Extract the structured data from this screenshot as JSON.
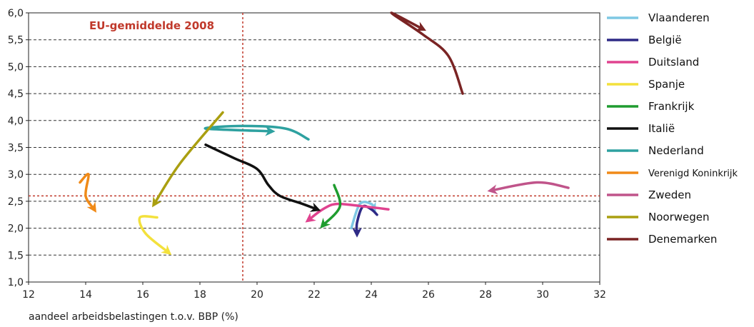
{
  "chart_data": {
    "type": "line",
    "title": "",
    "xlabel": "aandeel arbeidsbelastingen t.o.v. BBP (%)",
    "ylabel": "",
    "xlim": [
      12,
      32
    ],
    "ylim": [
      1.0,
      6.0
    ],
    "x_ticks": [
      "12",
      "14",
      "16",
      "18",
      "20",
      "22",
      "24",
      "26",
      "28",
      "30",
      "32"
    ],
    "y_ticks": [
      "1,0",
      "1,5",
      "2,0",
      "2,5",
      "3,0",
      "3,5",
      "4,0",
      "4,5",
      "5,0",
      "5,5",
      "6,0"
    ],
    "grid": "horizontal-dashed",
    "legend_position": "right",
    "reference": {
      "label": "EU-gemiddelde 2008",
      "x": 19.5,
      "y": 2.6,
      "color": "#c0392b"
    },
    "series": [
      {
        "name": "Vlaanderen",
        "color": "#7ec8e3",
        "points": [
          [
            23.3,
            2.0
          ],
          [
            23.6,
            2.45
          ],
          [
            24.0,
            2.45
          ],
          [
            24.1,
            2.35
          ]
        ]
      },
      {
        "name": "België",
        "color": "#2e2a86",
        "points": [
          [
            24.2,
            2.25
          ],
          [
            24.0,
            2.35
          ],
          [
            23.7,
            2.4
          ],
          [
            23.5,
            2.1
          ],
          [
            23.5,
            1.9
          ]
        ]
      },
      {
        "name": "Duitsland",
        "color": "#e0438f",
        "points": [
          [
            24.6,
            2.35
          ],
          [
            23.8,
            2.4
          ],
          [
            22.8,
            2.45
          ],
          [
            22.3,
            2.35
          ],
          [
            21.8,
            2.15
          ]
        ]
      },
      {
        "name": "Spanje",
        "color": "#f3e13c",
        "points": [
          [
            16.5,
            2.2
          ],
          [
            15.9,
            2.2
          ],
          [
            16.1,
            1.9
          ],
          [
            16.9,
            1.55
          ]
        ]
      },
      {
        "name": "Frankrijk",
        "color": "#1f9c2f",
        "points": [
          [
            22.7,
            2.8
          ],
          [
            22.9,
            2.4
          ],
          [
            22.3,
            2.05
          ]
        ]
      },
      {
        "name": "Italië",
        "color": "#111111",
        "points": [
          [
            18.2,
            3.55
          ],
          [
            19.2,
            3.3
          ],
          [
            20.0,
            3.1
          ],
          [
            20.4,
            2.8
          ],
          [
            20.8,
            2.6
          ],
          [
            21.6,
            2.45
          ],
          [
            22.1,
            2.35
          ]
        ]
      },
      {
        "name": "Nederland",
        "color": "#2ea1a0",
        "points": [
          [
            21.8,
            3.65
          ],
          [
            21.0,
            3.85
          ],
          [
            19.5,
            3.9
          ],
          [
            18.2,
            3.85
          ],
          [
            20.5,
            3.8
          ]
        ]
      },
      {
        "name": "Verenigd Koninkrijk",
        "color": "#f08a18",
        "points": [
          [
            13.8,
            2.85
          ],
          [
            14.1,
            3.0
          ],
          [
            14.0,
            2.6
          ],
          [
            14.3,
            2.35
          ]
        ]
      },
      {
        "name": "Zweden",
        "color": "#c0548a",
        "points": [
          [
            30.9,
            2.75
          ],
          [
            29.8,
            2.85
          ],
          [
            28.2,
            2.7
          ]
        ]
      },
      {
        "name": "Noorwegen",
        "color": "#aa9f10",
        "points": [
          [
            18.8,
            4.15
          ],
          [
            17.3,
            3.2
          ],
          [
            16.4,
            2.45
          ]
        ]
      },
      {
        "name": "Denemarken",
        "color": "#7a2424",
        "points": [
          [
            27.2,
            4.5
          ],
          [
            26.7,
            5.2
          ],
          [
            25.8,
            5.6
          ],
          [
            24.7,
            6.0
          ],
          [
            25.8,
            5.7
          ]
        ]
      }
    ]
  }
}
